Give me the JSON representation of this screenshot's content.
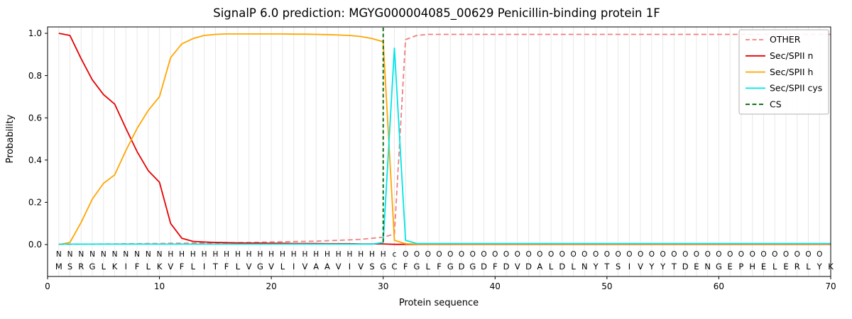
{
  "chart_data": {
    "type": "line",
    "title": "SignalP 6.0 prediction: MGYG000004085_00629 Penicillin-binding protein 1F",
    "xlabel": "Protein sequence",
    "ylabel": "Probability",
    "xlim": [
      0,
      70
    ],
    "ylim": [
      0,
      1.0
    ],
    "xticks": [
      0,
      10,
      20,
      30,
      40,
      50,
      60,
      70
    ],
    "yticks": [
      0.0,
      0.2,
      0.4,
      0.6,
      0.8,
      1.0
    ],
    "grid": "vertical line at every residue position",
    "legend_position": "upper-right",
    "x": [
      1,
      2,
      3,
      4,
      5,
      6,
      7,
      8,
      9,
      10,
      11,
      12,
      13,
      14,
      15,
      16,
      17,
      18,
      19,
      20,
      21,
      22,
      23,
      24,
      25,
      26,
      27,
      28,
      29,
      30,
      31,
      32,
      33,
      34,
      35,
      36,
      37,
      38,
      39,
      40,
      41,
      42,
      43,
      44,
      45,
      46,
      47,
      48,
      49,
      50,
      51,
      52,
      53,
      54,
      55,
      56,
      57,
      58,
      59,
      60,
      61,
      62,
      63,
      64,
      65,
      66,
      67,
      68,
      69,
      70
    ],
    "series": [
      {
        "name": "OTHER",
        "color": "#f08080",
        "dash": true,
        "values": [
          0.001,
          0.001,
          0.002,
          0.002,
          0.003,
          0.003,
          0.004,
          0.004,
          0.005,
          0.005,
          0.006,
          0.006,
          0.007,
          0.007,
          0.008,
          0.008,
          0.009,
          0.01,
          0.011,
          0.012,
          0.013,
          0.014,
          0.015,
          0.016,
          0.018,
          0.02,
          0.022,
          0.025,
          0.03,
          0.035,
          0.05,
          0.97,
          0.99,
          0.995,
          0.995,
          0.995,
          0.995,
          0.995,
          0.995,
          0.995,
          0.995,
          0.995,
          0.995,
          0.995,
          0.995,
          0.995,
          0.995,
          0.995,
          0.995,
          0.995,
          0.995,
          0.995,
          0.995,
          0.995,
          0.995,
          0.995,
          0.995,
          0.995,
          0.995,
          0.995,
          0.995,
          0.995,
          0.995,
          0.995,
          0.995,
          0.995,
          0.995,
          0.995,
          0.995,
          0.995
        ]
      },
      {
        "name": "Sec/SPII n",
        "color": "#e50000",
        "dash": false,
        "values": [
          1.0,
          0.99,
          0.88,
          0.78,
          0.71,
          0.665,
          0.55,
          0.44,
          0.35,
          0.295,
          0.1,
          0.03,
          0.015,
          0.012,
          0.01,
          0.009,
          0.008,
          0.007,
          0.007,
          0.006,
          0.006,
          0.005,
          0.005,
          0.005,
          0.004,
          0.004,
          0.004,
          0.003,
          0.003,
          0.003,
          0.001,
          0.001,
          0.001,
          0.001,
          0.001,
          0.001,
          0.001,
          0.001,
          0.001,
          0.001,
          0.001,
          0.001,
          0.001,
          0.001,
          0.001,
          0.001,
          0.001,
          0.001,
          0.001,
          0.001,
          0.001,
          0.001,
          0.001,
          0.001,
          0.001,
          0.001,
          0.001,
          0.001,
          0.001,
          0.001,
          0.001,
          0.001,
          0.001,
          0.001,
          0.001,
          0.001,
          0.001,
          0.001,
          0.001,
          0.001
        ]
      },
      {
        "name": "Sec/SPII h",
        "color": "#ffa500",
        "dash": false,
        "values": [
          0.0,
          0.01,
          0.105,
          0.215,
          0.29,
          0.33,
          0.445,
          0.55,
          0.635,
          0.7,
          0.885,
          0.95,
          0.975,
          0.99,
          0.995,
          0.997,
          0.997,
          0.997,
          0.997,
          0.997,
          0.997,
          0.996,
          0.996,
          0.995,
          0.994,
          0.992,
          0.99,
          0.985,
          0.975,
          0.96,
          0.02,
          0.004,
          0.002,
          0.002,
          0.002,
          0.002,
          0.002,
          0.002,
          0.002,
          0.002,
          0.002,
          0.002,
          0.002,
          0.002,
          0.002,
          0.002,
          0.002,
          0.002,
          0.002,
          0.002,
          0.002,
          0.002,
          0.002,
          0.002,
          0.002,
          0.002,
          0.002,
          0.002,
          0.002,
          0.002,
          0.002,
          0.002,
          0.002,
          0.002,
          0.002,
          0.002,
          0.002,
          0.002,
          0.002,
          0.002
        ]
      },
      {
        "name": "Sec/SPII cys",
        "color": "#00e5e5",
        "dash": false,
        "values": [
          0.002,
          0.002,
          0.002,
          0.002,
          0.002,
          0.002,
          0.002,
          0.002,
          0.002,
          0.002,
          0.002,
          0.002,
          0.002,
          0.002,
          0.002,
          0.002,
          0.002,
          0.002,
          0.002,
          0.002,
          0.002,
          0.002,
          0.002,
          0.002,
          0.002,
          0.002,
          0.002,
          0.002,
          0.002,
          0.01,
          0.93,
          0.02,
          0.005,
          0.005,
          0.005,
          0.005,
          0.005,
          0.005,
          0.005,
          0.005,
          0.005,
          0.005,
          0.005,
          0.005,
          0.005,
          0.005,
          0.005,
          0.005,
          0.005,
          0.005,
          0.005,
          0.005,
          0.005,
          0.005,
          0.005,
          0.005,
          0.005,
          0.005,
          0.005,
          0.005,
          0.005,
          0.005,
          0.005,
          0.005,
          0.005,
          0.005,
          0.005,
          0.005,
          0.005,
          0.005
        ]
      }
    ],
    "cs_line": {
      "name": "CS",
      "x": 30,
      "color": "#006400",
      "dash": true
    },
    "legend": [
      {
        "label": "OTHER",
        "color": "#f08080",
        "dash": true
      },
      {
        "label": "Sec/SPII n",
        "color": "#e50000",
        "dash": false
      },
      {
        "label": "Sec/SPII h",
        "color": "#ffa500",
        "dash": false
      },
      {
        "label": "Sec/SPII cys",
        "color": "#00e5e5",
        "dash": false
      },
      {
        "label": "CS",
        "color": "#006400",
        "dash": true
      }
    ],
    "sequence": "MSRGLKIFLKVFLITFLVGVLIVAAVIVSGCFGLFGDGDFDVDALDLNYTSIVYYTDENGEPHELERLYK",
    "region_labels": "NNNNNNNNNNHHHHHHHHHHHHHHHHHHHHcOOOOOOOOOOOOOOOOOOOOOOOOOOOOOOOOOOOOOO",
    "label_colors": {
      "N": "#e50000",
      "H": "#ffa500",
      "c": "#00e5e5",
      "O": "#8a8a8a"
    },
    "sequence_color": "#111111"
  }
}
